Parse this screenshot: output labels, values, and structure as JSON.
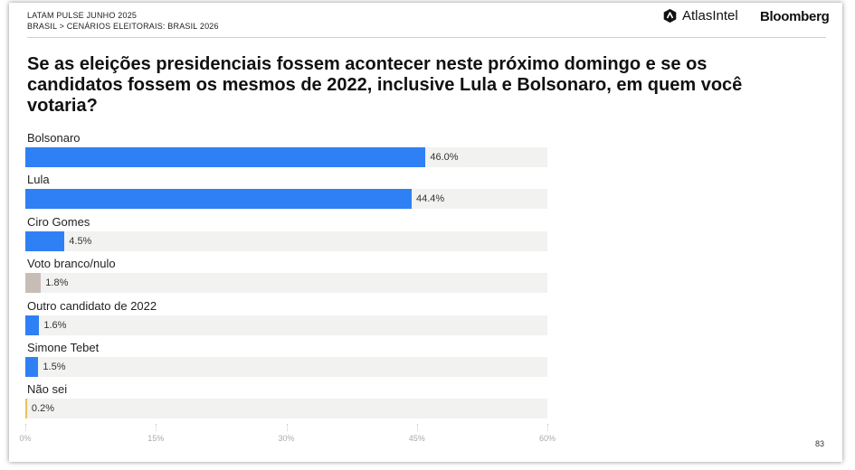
{
  "header": {
    "kicker_line1": "LATAM PULSE JUNHO 2025",
    "kicker_line2": "BRASIL > CENÁRIOS ELEITORAIS: BRASIL 2026",
    "brand_atlas": "AtlasIntel",
    "brand_bloomberg": "Bloomberg"
  },
  "page_number": "83",
  "chart_data": {
    "type": "bar",
    "orientation": "horizontal",
    "title": "Se as eleições presidenciais fossem acontecer neste próximo domingo e se os candidatos fossem os mesmos de 2022, inclusive Lula e Bolsonaro, em quem você votaria?",
    "categories": [
      "Bolsonaro",
      "Lula",
      "Ciro Gomes",
      "Voto branco/nulo",
      "Outro candidato de 2022",
      "Simone Tebet",
      "Não sei"
    ],
    "values": [
      46.0,
      44.4,
      4.5,
      1.8,
      1.6,
      1.5,
      0.2
    ],
    "value_labels": [
      "46.0%",
      "44.4%",
      "4.5%",
      "1.8%",
      "1.6%",
      "1.5%",
      "0.2%"
    ],
    "colors": [
      "#2f80f5",
      "#2f80f5",
      "#2f80f5",
      "#c8bdb6",
      "#2f80f5",
      "#2f80f5",
      "#e8c25a"
    ],
    "track_color": "#f2f2f0",
    "xlim": [
      0,
      60
    ],
    "xticks": [
      "0%",
      "15%",
      "30%",
      "45%",
      "60%"
    ],
    "xtick_values": [
      0,
      15,
      30,
      45,
      60
    ],
    "grid": false
  }
}
